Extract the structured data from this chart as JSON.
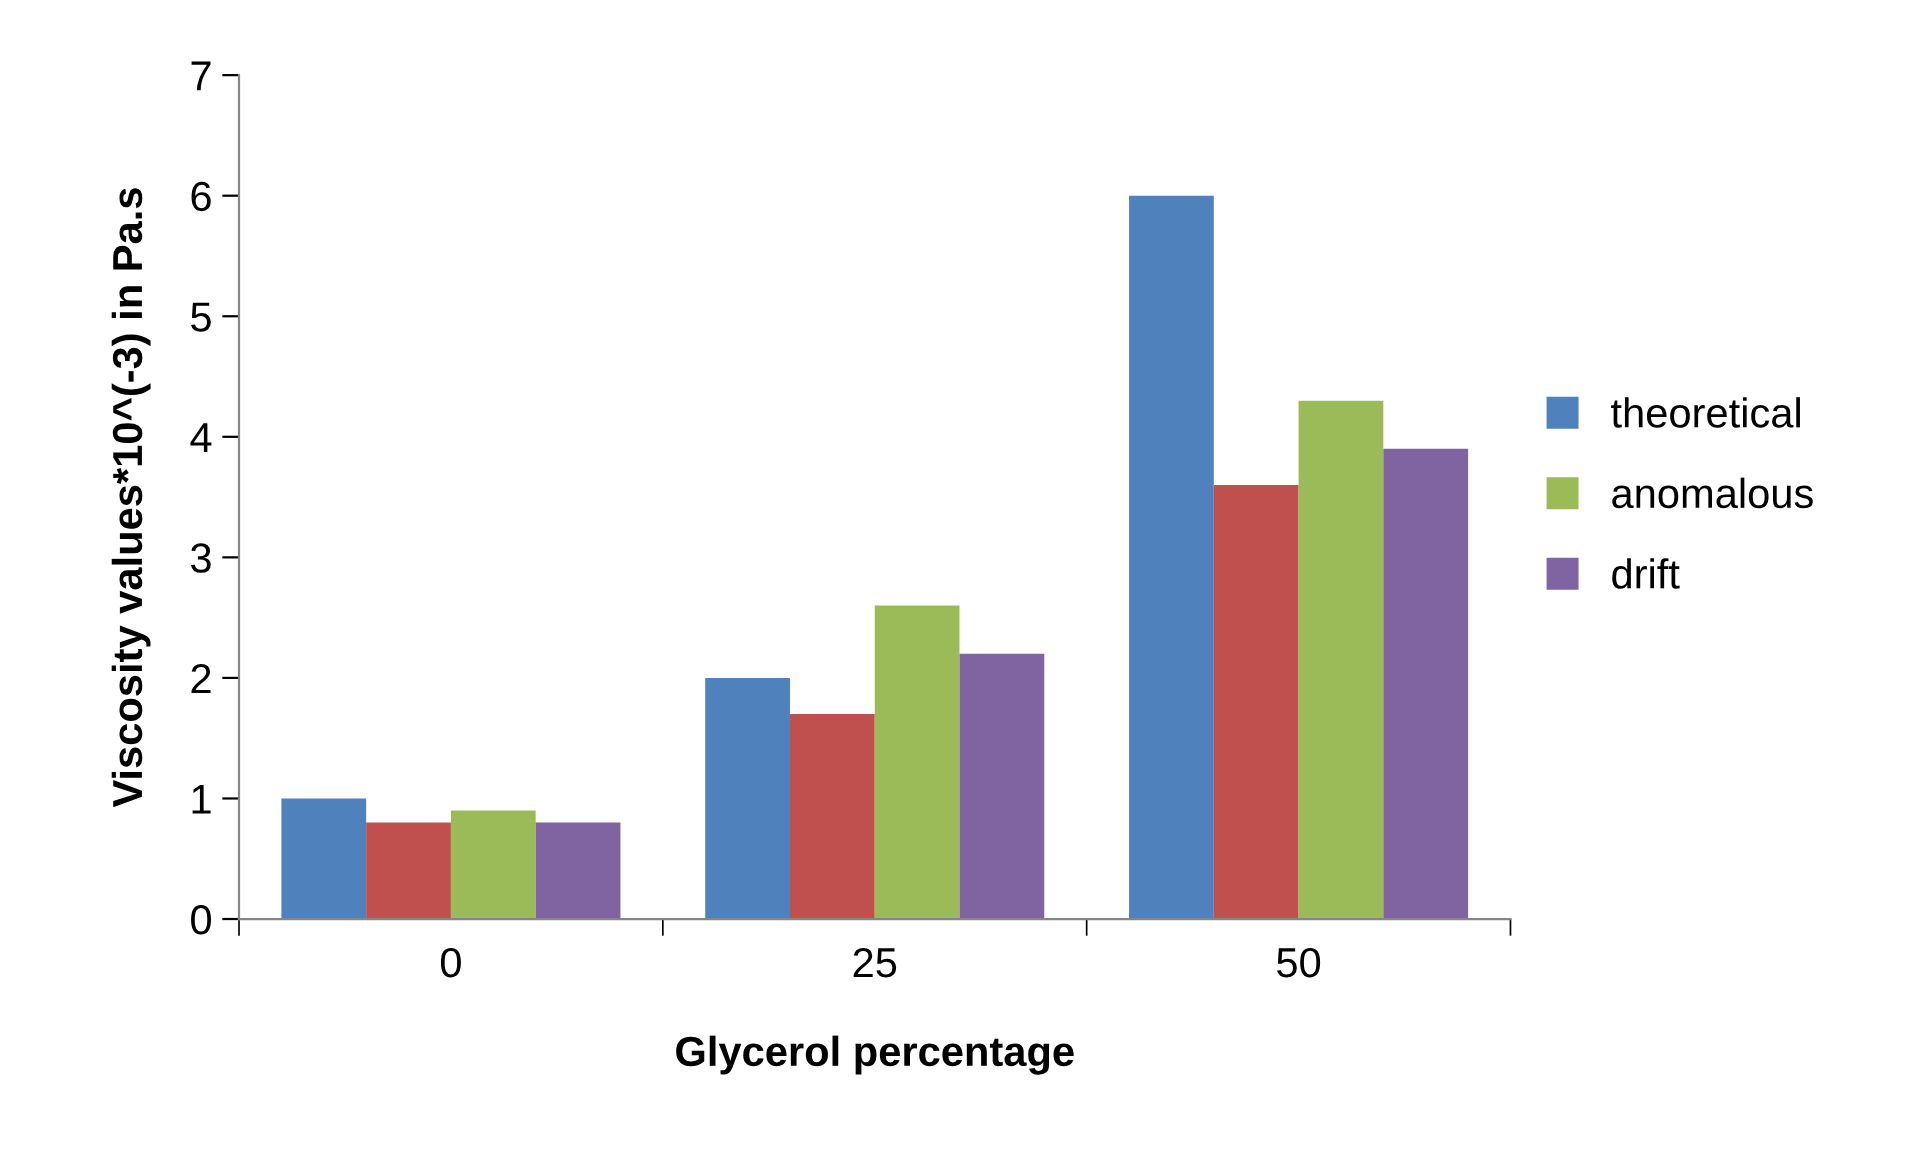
{
  "chart_data": {
    "type": "bar",
    "xlabel": "Glycerol percentage",
    "ylabel": "Viscosity values*10^(-3) in Pa.s",
    "categories": [
      "0",
      "25",
      "50"
    ],
    "series": [
      {
        "name": "theoretical",
        "color": "#4f81bd",
        "values": [
          1,
          2,
          6
        ]
      },
      {
        "color": "#c0504d",
        "values": [
          0.8,
          1.7,
          3.6
        ]
      },
      {
        "name": "anomalous",
        "color": "#9bbb59",
        "values": [
          0.9,
          2.6,
          4.3
        ]
      },
      {
        "name": "drift",
        "color": "#8064a2",
        "values": [
          0.8,
          2.2,
          3.9
        ]
      }
    ],
    "ylim": [
      0,
      7
    ],
    "yticks": [
      0,
      1,
      2,
      3,
      4,
      5,
      6,
      7
    ],
    "grid": false,
    "legend": "right"
  }
}
